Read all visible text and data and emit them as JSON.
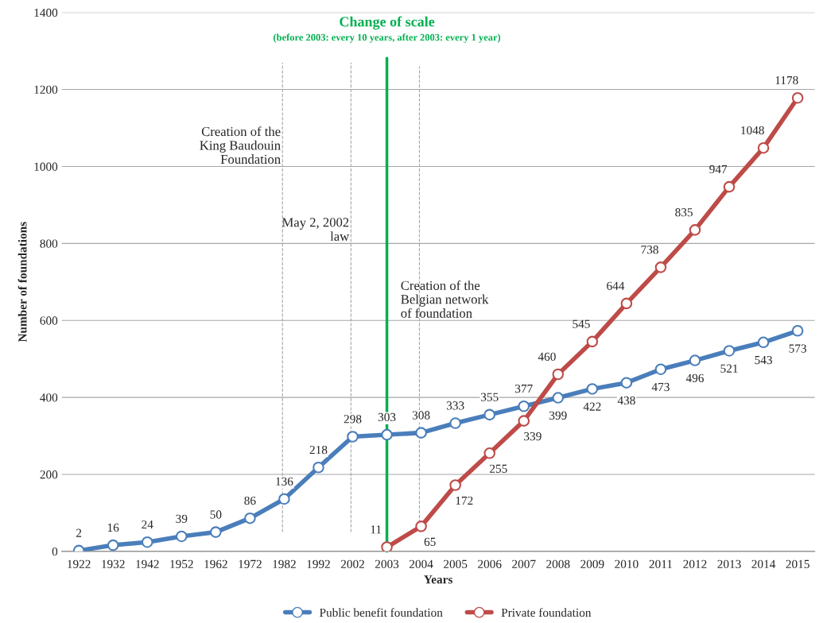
{
  "chart_data": {
    "type": "line",
    "xlabel": "Years",
    "ylabel": "Number of foundations",
    "categories": [
      "1922",
      "1932",
      "1942",
      "1952",
      "1962",
      "1972",
      "1982",
      "1992",
      "2002",
      "2003",
      "2004",
      "2005",
      "2006",
      "2007",
      "2008",
      "2009",
      "2010",
      "2011",
      "2012",
      "2013",
      "2014",
      "2015"
    ],
    "series": [
      {
        "name": "Public benefit foundation",
        "color": "#4a7ebb",
        "values": [
          2,
          16,
          24,
          39,
          50,
          86,
          136,
          218,
          298,
          303,
          308,
          333,
          355,
          377,
          399,
          422,
          438,
          473,
          496,
          521,
          543,
          573
        ]
      },
      {
        "name": "Private foundation",
        "color": "#be4b48",
        "values": [
          null,
          null,
          null,
          null,
          null,
          null,
          null,
          null,
          null,
          11,
          65,
          172,
          255,
          339,
          460,
          545,
          644,
          738,
          835,
          947,
          1048,
          1178
        ]
      }
    ],
    "ylim": [
      0,
      1400
    ],
    "yticks": [
      0,
      200,
      400,
      600,
      800,
      1000,
      1200,
      1400
    ],
    "grid": "y",
    "marker": "circle",
    "line_style": "solid",
    "data_labels": true,
    "legend": "bottom",
    "ref_lines": [
      {
        "axis": "x",
        "value": "1982",
        "color": "#a6a6a6",
        "line_style": "dashed"
      },
      {
        "axis": "x",
        "value": "2002",
        "color": "#a6a6a6",
        "line_style": "dashed"
      },
      {
        "axis": "x",
        "value": "2004",
        "color": "#a6a6a6",
        "line_style": "dashed"
      },
      {
        "axis": "x",
        "value": "2003",
        "color": "#00b050",
        "line_style": "solid",
        "label": "Change of scale"
      }
    ],
    "annotations": [
      "(before 2003: every 10 years, after 2003: every 1 year)",
      {
        "text": "Creation of the\nKing Baudouin\nFoundation",
        "x": "1982",
        "y": 1000
      },
      {
        "text": "May 2, 2002\nlaw",
        "x": "2002",
        "y": 800
      },
      {
        "text": "Creation of the\nBelgian network\nof foundation",
        "x": "2004",
        "y": 600
      }
    ]
  }
}
